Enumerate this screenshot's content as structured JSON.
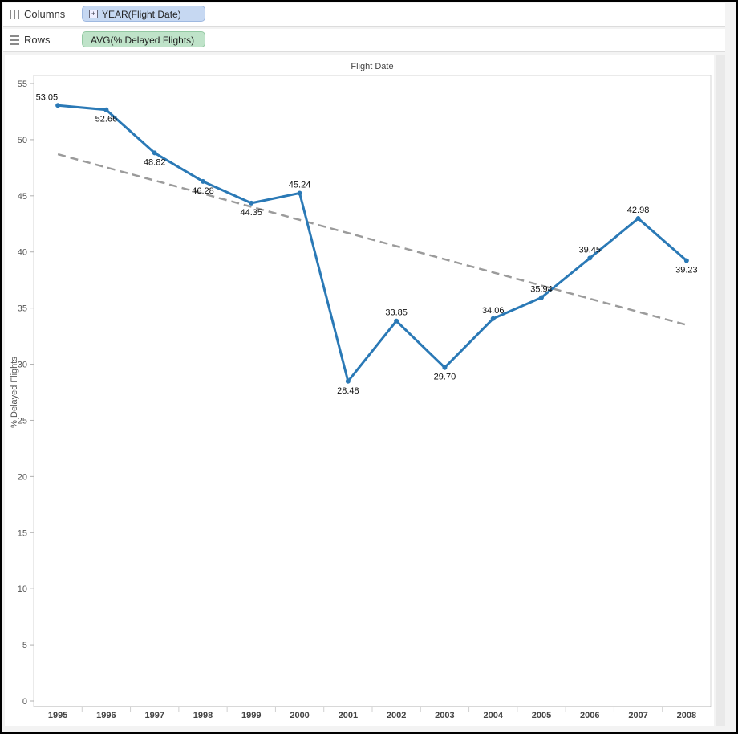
{
  "shelves": {
    "columns": {
      "label": "Columns",
      "pill": "YEAR(Flight Date)"
    },
    "rows": {
      "label": "Rows",
      "pill": "AVG(% Delayed Flights)"
    }
  },
  "colors": {
    "line": "#2a79b6",
    "trend": "#9b9b9b",
    "columns_pill": "#c6d8f2",
    "rows_pill": "#bfe3c9"
  },
  "chart_data": {
    "type": "line",
    "title": "Flight Date",
    "xlabel": "",
    "ylabel": "% Delayed Flights",
    "ylim": [
      0,
      55
    ],
    "yticks": [
      0,
      5,
      10,
      15,
      20,
      25,
      30,
      35,
      40,
      45,
      50,
      55
    ],
    "grid": false,
    "categories": [
      "1995",
      "1996",
      "1997",
      "1998",
      "1999",
      "2000",
      "2001",
      "2002",
      "2003",
      "2004",
      "2005",
      "2006",
      "2007",
      "2008"
    ],
    "series": [
      {
        "values": [
          53.05,
          52.66,
          48.82,
          46.28,
          44.35,
          45.24,
          28.48,
          33.85,
          29.7,
          34.06,
          35.94,
          39.45,
          42.98,
          39.23
        ]
      }
    ],
    "data_labels": [
      "53.05",
      "52.66",
      "48.82",
      "46.28",
      "44.35",
      "45.24",
      "28.48",
      "33.85",
      "29.70",
      "34.06",
      "35.94",
      "39.45",
      "42.98",
      "39.23"
    ],
    "trend_line": {
      "style": "dashed",
      "start": 48.7,
      "end": 33.5
    }
  }
}
